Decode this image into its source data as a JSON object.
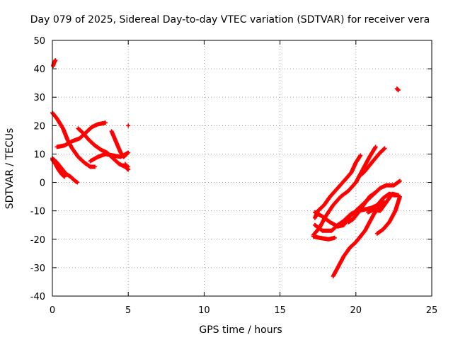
{
  "chart_data": {
    "type": "scatter",
    "title": "Day 079 of 2025, Sidereal Day-to-day VTEC variation (SDTVAR) for receiver vera",
    "xlabel": "GPS time / hours",
    "ylabel": "SDTVAR / TECUs",
    "xlim": [
      0,
      25
    ],
    "ylim": [
      -40,
      50
    ],
    "xticks": [
      0,
      5,
      10,
      15,
      20,
      25
    ],
    "yticks": [
      -40,
      -30,
      -20,
      -10,
      0,
      10,
      20,
      30,
      40,
      50
    ],
    "xtick_labels": [
      "0",
      "5",
      "10",
      "15",
      "20",
      "25"
    ],
    "ytick_labels": [
      "-40",
      "-30",
      "-20",
      "-10",
      "0",
      "10",
      "20",
      "30",
      "40",
      "50"
    ],
    "grid": true,
    "legend": "none",
    "marker_color": "#ff0000",
    "series": [
      {
        "points": [
          [
            0.0,
            24.5
          ],
          [
            0.3,
            22.5
          ],
          [
            0.7,
            19
          ],
          [
            1.0,
            15
          ],
          [
            1.3,
            12
          ],
          [
            1.7,
            9
          ],
          [
            2.1,
            7
          ],
          [
            2.5,
            5.5
          ],
          [
            2.8,
            5.5
          ]
        ]
      },
      {
        "points": [
          [
            0.0,
            8.5
          ],
          [
            0.3,
            7
          ],
          [
            0.6,
            5
          ],
          [
            0.9,
            3
          ],
          [
            1.2,
            2
          ],
          [
            1.5,
            0.5
          ],
          [
            1.65,
            0
          ]
        ]
      },
      {
        "points": [
          [
            0.0,
            8
          ],
          [
            0.2,
            6.5
          ],
          [
            0.4,
            4.5
          ],
          [
            0.6,
            3
          ],
          [
            0.8,
            2
          ]
        ]
      },
      {
        "points": [
          [
            0.3,
            12.5
          ],
          [
            0.8,
            13
          ],
          [
            1.3,
            14.5
          ],
          [
            1.8,
            15.5
          ],
          [
            2.2,
            17.5
          ],
          [
            2.6,
            19.5
          ],
          [
            3.0,
            20.5
          ],
          [
            3.5,
            21
          ]
        ]
      },
      {
        "points": [
          [
            1.7,
            19
          ],
          [
            2.0,
            17.5
          ],
          [
            2.4,
            15
          ],
          [
            2.8,
            13
          ],
          [
            3.2,
            11.5
          ],
          [
            3.6,
            10.5
          ],
          [
            4.0,
            8.5
          ],
          [
            4.4,
            6.5
          ],
          [
            4.8,
            5.5
          ],
          [
            5.0,
            5.5
          ]
        ]
      },
      {
        "points": [
          [
            2.5,
            7.5
          ],
          [
            3.0,
            9
          ],
          [
            3.5,
            10
          ],
          [
            4.0,
            9.5
          ],
          [
            4.5,
            9
          ],
          [
            5.0,
            10.5
          ]
        ]
      },
      {
        "points": [
          [
            3.9,
            18
          ],
          [
            4.1,
            15.5
          ],
          [
            4.3,
            13
          ],
          [
            4.5,
            10.5
          ],
          [
            4.7,
            9
          ],
          [
            4.9,
            10
          ]
        ]
      },
      {
        "points": [
          [
            4.8,
            6.5
          ],
          [
            4.9,
            5
          ],
          [
            5.0,
            4.5
          ]
        ]
      },
      {
        "points": [
          [
            0.05,
            41
          ],
          [
            0.1,
            42
          ],
          [
            0.2,
            43
          ]
        ]
      },
      {
        "points": [
          [
            5.0,
            20
          ]
        ]
      },
      {
        "points": [
          [
            22.7,
            33
          ],
          [
            22.8,
            32.5
          ]
        ]
      },
      {
        "points": [
          [
            17.2,
            -18.5
          ],
          [
            17.6,
            -16
          ],
          [
            18.0,
            -12
          ],
          [
            18.5,
            -8
          ],
          [
            19.0,
            -5
          ],
          [
            19.5,
            -3
          ],
          [
            20.0,
            0
          ],
          [
            20.3,
            3
          ],
          [
            20.6,
            6
          ],
          [
            20.9,
            9
          ],
          [
            21.3,
            12.5
          ]
        ]
      },
      {
        "points": [
          [
            17.3,
            -12.5
          ],
          [
            17.5,
            -10
          ],
          [
            17.9,
            -8
          ],
          [
            18.3,
            -5
          ],
          [
            18.8,
            -2
          ],
          [
            19.3,
            1
          ],
          [
            19.7,
            3.5
          ],
          [
            20.0,
            7
          ],
          [
            20.3,
            9.5
          ]
        ]
      },
      {
        "points": [
          [
            17.2,
            -19
          ],
          [
            17.6,
            -19.5
          ],
          [
            18.2,
            -20
          ],
          [
            18.6,
            -19.5
          ]
        ]
      },
      {
        "points": [
          [
            17.3,
            -15
          ],
          [
            17.8,
            -17
          ],
          [
            18.4,
            -17
          ],
          [
            18.8,
            -15
          ],
          [
            19.2,
            -13.5
          ],
          [
            19.7,
            -11
          ],
          [
            20.2,
            -10
          ],
          [
            20.6,
            -9.5
          ],
          [
            21.0,
            -9
          ],
          [
            21.4,
            -8
          ],
          [
            21.8,
            -5.5
          ],
          [
            22.2,
            -4
          ],
          [
            22.5,
            -4.5
          ],
          [
            22.8,
            -4.5
          ]
        ]
      },
      {
        "points": [
          [
            17.3,
            -10.5
          ],
          [
            17.8,
            -12
          ],
          [
            18.3,
            -14
          ],
          [
            18.8,
            -15.5
          ],
          [
            19.2,
            -15
          ],
          [
            19.6,
            -12
          ],
          [
            20.0,
            -10
          ],
          [
            20.4,
            -8
          ],
          [
            20.8,
            -6
          ],
          [
            21.2,
            -4
          ],
          [
            21.6,
            -2
          ],
          [
            22.0,
            -1
          ],
          [
            22.5,
            -1
          ],
          [
            22.9,
            0.5
          ]
        ]
      },
      {
        "points": [
          [
            18.5,
            -33
          ],
          [
            18.8,
            -30
          ],
          [
            19.2,
            -26
          ],
          [
            19.6,
            -23
          ],
          [
            20.0,
            -21
          ],
          [
            20.3,
            -19
          ],
          [
            20.6,
            -17
          ],
          [
            20.9,
            -14
          ],
          [
            21.2,
            -11
          ],
          [
            21.5,
            -9
          ],
          [
            21.8,
            -6.5
          ]
        ]
      },
      {
        "points": [
          [
            19.5,
            -14
          ],
          [
            19.8,
            -13
          ],
          [
            20.1,
            -11
          ],
          [
            20.5,
            -8
          ],
          [
            20.9,
            -5
          ],
          [
            21.3,
            -3.5
          ]
        ]
      },
      {
        "points": [
          [
            20.8,
            -10.5
          ],
          [
            21.2,
            -9.5
          ],
          [
            21.6,
            -10
          ],
          [
            22.0,
            -7
          ],
          [
            22.4,
            -4
          ],
          [
            22.8,
            -4.5
          ]
        ]
      },
      {
        "points": [
          [
            21.4,
            -18
          ],
          [
            21.8,
            -16.5
          ],
          [
            22.2,
            -14
          ],
          [
            22.6,
            -10
          ],
          [
            22.9,
            -5
          ]
        ]
      },
      {
        "points": [
          [
            20.3,
            2.5
          ],
          [
            20.6,
            4
          ],
          [
            20.9,
            6
          ],
          [
            21.2,
            8
          ],
          [
            21.6,
            10.5
          ],
          [
            21.9,
            12
          ]
        ]
      }
    ]
  }
}
